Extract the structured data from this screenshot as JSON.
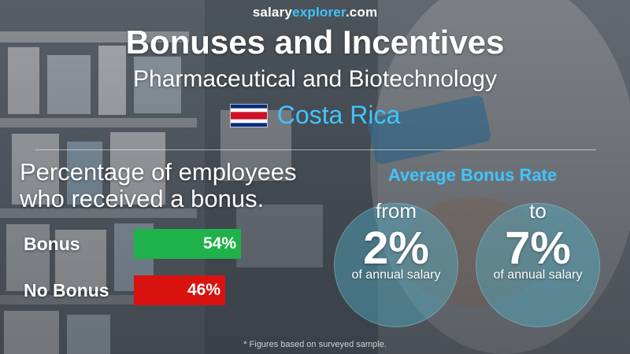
{
  "brand": {
    "part1": "salary",
    "part2": "explorer",
    "part3": ".com"
  },
  "title": "Bonuses and Incentives",
  "subtitle": "Pharmaceutical and Biotechnology",
  "country": {
    "name": "Costa Rica",
    "flag_icon": "costa-rica-flag-icon"
  },
  "colors": {
    "accent": "#40c4ff",
    "bonus_bar": "#1fb24a",
    "no_bonus_bar": "#d9120f"
  },
  "percentage_section": {
    "heading_line1": "Percentage of employees",
    "heading_line2": "who received a bonus."
  },
  "average_section": {
    "heading": "Average Bonus Rate",
    "from": {
      "word": "from",
      "value": "2%",
      "sub": "of annual salary"
    },
    "to": {
      "word": "to",
      "value": "7%",
      "sub": "of annual salary"
    }
  },
  "chart_data": {
    "type": "bar",
    "orientation": "horizontal",
    "categories": [
      "Bonus",
      "No Bonus"
    ],
    "values": [
      54,
      46
    ],
    "value_labels": [
      "54%",
      "46%"
    ],
    "unit": "%",
    "xlim": [
      0,
      100
    ]
  },
  "footnote": "* Figures based on surveyed sample."
}
